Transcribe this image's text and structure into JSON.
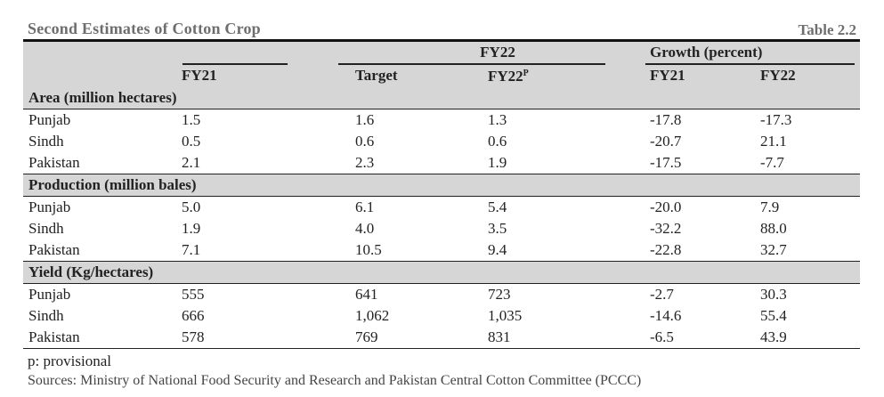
{
  "title": "Second Estimates of Cotton Crop",
  "table_no": "Table 2.2",
  "header": {
    "group_fy22": "FY22",
    "group_growth": "Growth (percent)",
    "col_fy21": "FY21",
    "col_target": "Target",
    "col_fy22p": "FY22",
    "col_fy22p_sup": "P",
    "col_growth_fy21": "FY21",
    "col_growth_fy22": "FY22"
  },
  "sections": [
    {
      "label": "Area (million hectares)",
      "rows": [
        {
          "name": "Punjab",
          "fy21": "1.5",
          "target": "1.6",
          "fy22": "1.3",
          "g21": "-17.8",
          "g22": "-17.3"
        },
        {
          "name": "Sindh",
          "fy21": "0.5",
          "target": "0.6",
          "fy22": "0.6",
          "g21": "-20.7",
          "g22": "21.1"
        },
        {
          "name": "Pakistan",
          "fy21": "2.1",
          "target": "2.3",
          "fy22": "1.9",
          "g21": "-17.5",
          "g22": "-7.7"
        }
      ]
    },
    {
      "label": "Production (million bales)",
      "rows": [
        {
          "name": "Punjab",
          "fy21": "5.0",
          "target": "6.1",
          "fy22": "5.4",
          "g21": "-20.0",
          "g22": "7.9"
        },
        {
          "name": "Sindh",
          "fy21": "1.9",
          "target": "4.0",
          "fy22": "3.5",
          "g21": "-32.2",
          "g22": "88.0"
        },
        {
          "name": "Pakistan",
          "fy21": "7.1",
          "target": "10.5",
          "fy22": "9.4",
          "g21": "-22.8",
          "g22": "32.7"
        }
      ]
    },
    {
      "label": "Yield (Kg/hectares)",
      "rows": [
        {
          "name": "Punjab",
          "fy21": "555",
          "target": "641",
          "fy22": "723",
          "g21": "-2.7",
          "g22": "30.3"
        },
        {
          "name": "Sindh",
          "fy21": "666",
          "target": "1,062",
          "fy22": "1,035",
          "g21": "-14.6",
          "g22": "55.4"
        },
        {
          "name": "Pakistan",
          "fy21": "578",
          "target": "769",
          "fy22": "831",
          "g21": "-6.5",
          "g22": "43.9"
        }
      ]
    }
  ],
  "footnote": "p: provisional",
  "sources": "Sources: Ministry of National Food Security and Research and Pakistan Central Cotton Committee (PCCC)"
}
